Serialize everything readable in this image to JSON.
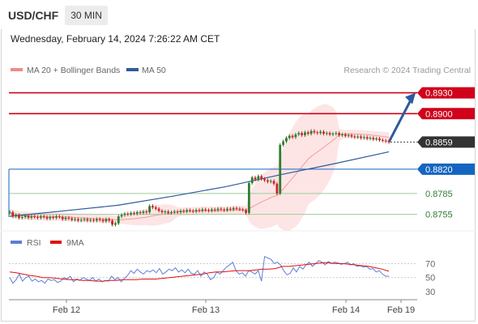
{
  "header": {
    "symbol": "USD/CHF",
    "timeframe": "30 MIN"
  },
  "timestamp": "Wednesday, February 14, 2024 7:26:22 AM CET",
  "legend": {
    "bb_label": "MA 20 + Bollinger Bands",
    "bb_color": "#f08a8a",
    "ma50_label": "MA 50",
    "ma50_color": "#2e5a9a",
    "rsi_label": "RSI",
    "rsi_color": "#5b7fd6",
    "ma9_label": "9MA",
    "ma9_color": "#e01010"
  },
  "copyright": "Research © 2024 Trading Central",
  "chart_data": [
    {
      "type": "candlestick",
      "ylim": [
        0.8737,
        0.8947
      ],
      "x_ticks": [
        "Feb 12",
        "Feb 13",
        "Feb 14",
        "Feb 19"
      ],
      "levels": [
        {
          "value": 0.893,
          "label": "0.8930",
          "role": "resistance",
          "color": "#d0021b",
          "style": "badge"
        },
        {
          "value": 0.89,
          "label": "0.8900",
          "role": "resistance",
          "color": "#d0021b",
          "style": "badge"
        },
        {
          "value": 0.8859,
          "label": "0.8859",
          "role": "last",
          "color": "#333333",
          "style": "badge"
        },
        {
          "value": 0.882,
          "label": "0.8820",
          "role": "pivot",
          "color": "#1565c0",
          "style": "badge"
        },
        {
          "value": 0.8785,
          "label": "0.8785",
          "role": "support",
          "color": "#2e7d32",
          "style": "text"
        },
        {
          "value": 0.8755,
          "label": "0.8755",
          "role": "support",
          "color": "#2e7d32",
          "style": "text"
        }
      ],
      "close": [
        0.8758,
        0.8752,
        0.8754,
        0.875,
        0.8751,
        0.8753,
        0.875,
        0.8752,
        0.8751,
        0.875,
        0.8752,
        0.8751,
        0.8749,
        0.8751,
        0.875,
        0.8752,
        0.8751,
        0.8748,
        0.875,
        0.8749,
        0.8747,
        0.8748,
        0.8746,
        0.8747,
        0.8748,
        0.8746,
        0.8747,
        0.8746,
        0.8748,
        0.8747,
        0.8745,
        0.8748,
        0.8746,
        0.874,
        0.8742,
        0.8752,
        0.8754,
        0.8756,
        0.8755,
        0.8757,
        0.8756,
        0.8758,
        0.8757,
        0.8759,
        0.8758,
        0.8767,
        0.8765,
        0.8763,
        0.876,
        0.8758,
        0.8759,
        0.8757,
        0.8758,
        0.8759,
        0.8758,
        0.876,
        0.8759,
        0.8761,
        0.876,
        0.8759,
        0.8761,
        0.876,
        0.8762,
        0.8761,
        0.876,
        0.8762,
        0.8761,
        0.8763,
        0.8762,
        0.8761,
        0.8763,
        0.8762,
        0.8764,
        0.8763,
        0.8762,
        0.8761,
        0.8757,
        0.88,
        0.8808,
        0.8805,
        0.881,
        0.8806,
        0.8804,
        0.8802,
        0.8803,
        0.8799,
        0.8785,
        0.8855,
        0.886,
        0.8865,
        0.8868,
        0.8866,
        0.887,
        0.8872,
        0.8869,
        0.8873,
        0.8871,
        0.8875,
        0.8873,
        0.8872,
        0.8874,
        0.8871,
        0.8872,
        0.887,
        0.8871,
        0.8872,
        0.8869,
        0.887,
        0.8868,
        0.8869,
        0.8867,
        0.8866,
        0.8867,
        0.8865,
        0.8866,
        0.8864,
        0.8865,
        0.8863,
        0.8864,
        0.8862,
        0.8861,
        0.886,
        0.8859
      ],
      "ma50": [
        0.8752,
        0.876,
        0.8768,
        0.8781,
        0.8795,
        0.8812,
        0.8828,
        0.8845
      ],
      "forecast": {
        "from": 0.8859,
        "to": 0.893
      }
    },
    {
      "type": "line",
      "title": "RSI",
      "ylim": [
        22,
        82
      ],
      "y_ticks": [
        70,
        50,
        30
      ],
      "rsi": [
        50,
        42,
        47,
        55,
        45,
        50,
        52,
        45,
        48,
        44,
        46,
        42,
        48,
        46,
        47,
        43,
        45,
        50,
        48,
        52,
        44,
        48,
        46,
        50,
        48,
        46,
        50,
        45,
        48,
        44,
        46,
        45,
        52,
        47,
        50,
        44,
        49,
        53,
        60,
        56,
        62,
        58,
        55,
        60,
        58,
        61,
        57,
        63,
        55,
        58,
        62,
        60,
        64,
        58,
        61,
        57,
        62,
        56,
        55,
        60,
        52,
        58,
        55,
        47,
        50,
        58,
        55,
        60,
        65,
        68,
        72,
        60,
        55,
        57,
        52,
        60,
        58,
        55,
        60,
        45,
        80,
        78,
        76,
        70,
        72,
        68,
        60,
        54,
        56,
        64,
        58,
        66,
        62,
        68,
        72,
        66,
        70,
        74,
        72,
        68,
        73,
        70,
        72,
        71,
        69,
        70,
        72,
        68,
        70,
        66,
        67,
        65,
        66,
        62,
        63,
        58,
        60,
        55,
        52,
        52
      ],
      "ma9": [
        58,
        57,
        55,
        53,
        52,
        50,
        50,
        49,
        48,
        47,
        47,
        46,
        46,
        45,
        45,
        46,
        46,
        47,
        47,
        47,
        48,
        48,
        48,
        49,
        50,
        51,
        52,
        53,
        54,
        55,
        57,
        58,
        58,
        59,
        60,
        60,
        60,
        61,
        62,
        62,
        63,
        66,
        66,
        67,
        68,
        69,
        70,
        71,
        71,
        70,
        70,
        69,
        68,
        67,
        66,
        64,
        62,
        59
      ]
    }
  ]
}
